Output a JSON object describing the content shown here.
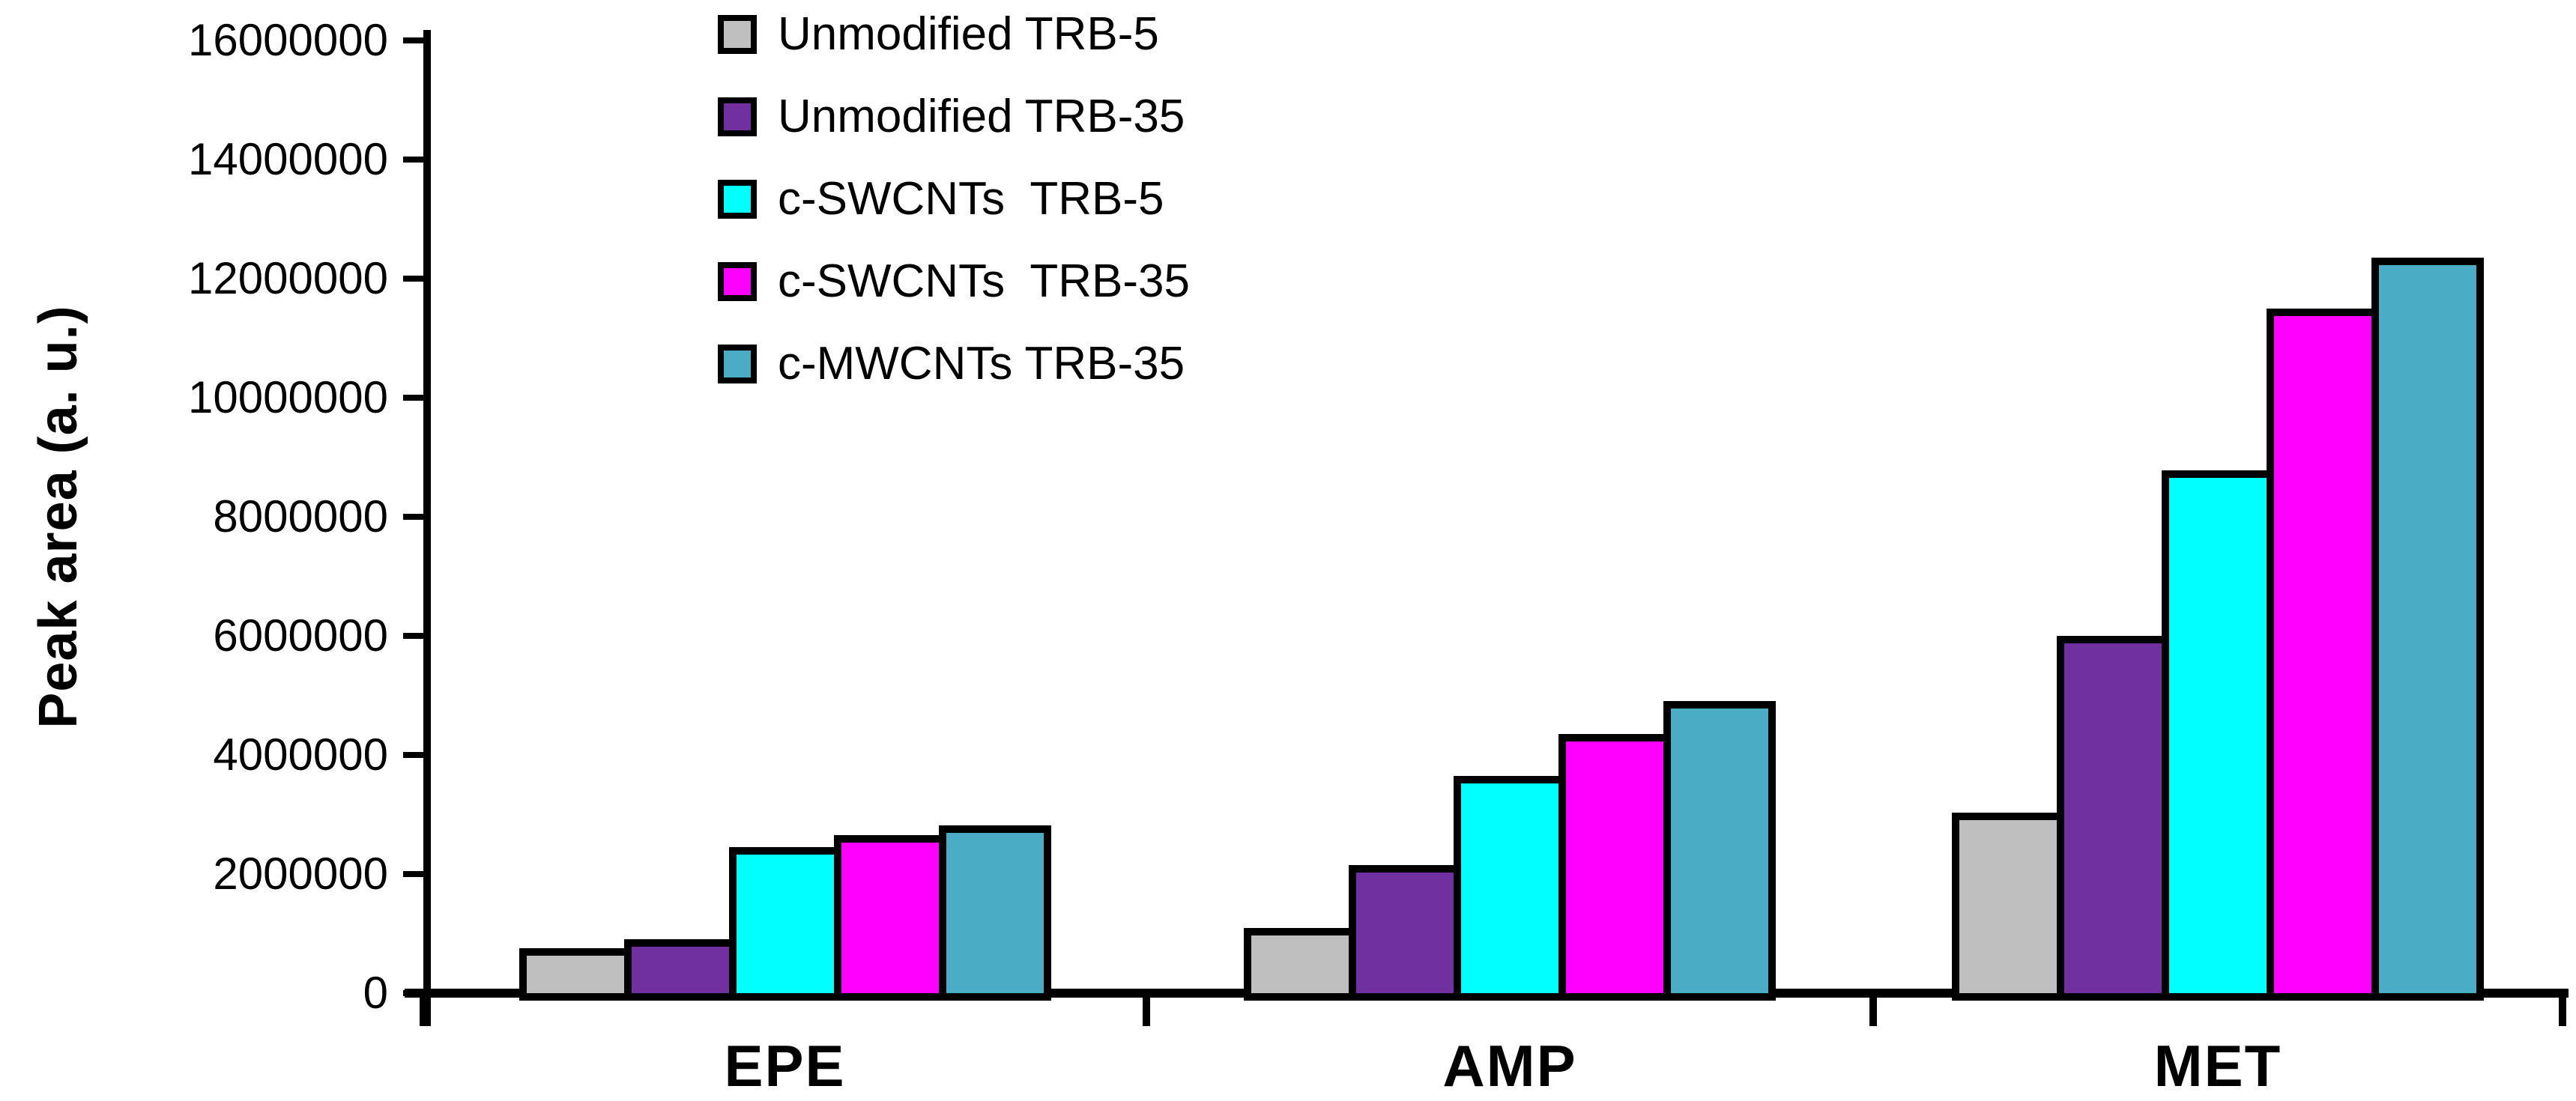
{
  "figure": {
    "background": "#FFFFFF",
    "text_color": "#000000"
  },
  "y_axis": {
    "title": "Peak area (a. u.)",
    "min": 0,
    "max": 16000000,
    "tick_step": 2000000,
    "tick_labels": [
      "16000000",
      "14000000",
      "12000000",
      "10000000",
      "8000000",
      "6000000",
      "4000000",
      "2000000",
      "0"
    ]
  },
  "x_axis": {
    "categories": [
      "EPE",
      "AMP",
      "MET"
    ]
  },
  "chart_data": {
    "type": "bar",
    "categories": [
      "EPE",
      "AMP",
      "MET"
    ],
    "series": [
      {
        "name": "Unmodified TRB-5",
        "color": "#BFBFBF",
        "values": [
          760000,
          1100000,
          3030000
        ]
      },
      {
        "name": "Unmodified TRB-35",
        "color": "#7030A0",
        "values": [
          900000,
          2150000,
          6000000
        ]
      },
      {
        "name": "c-SWCNTs  TRB-5",
        "color": "#00FFFF",
        "values": [
          2450000,
          3650000,
          8780000
        ]
      },
      {
        "name": "c-SWCNTs  TRB-35",
        "color": "#FF00FF",
        "values": [
          2650000,
          4350000,
          11500000
        ]
      },
      {
        "name": "c-MWCNTs TRB-35",
        "color": "#4BACC6",
        "values": [
          2820000,
          4900000,
          12350000
        ]
      }
    ],
    "title": "",
    "xlabel": "",
    "ylabel": "Peak area (a. u.)",
    "ylim": [
      0,
      16000000
    ],
    "grid": false,
    "bar_border_color": "#000000",
    "legend_position": "upper-left-inside"
  }
}
